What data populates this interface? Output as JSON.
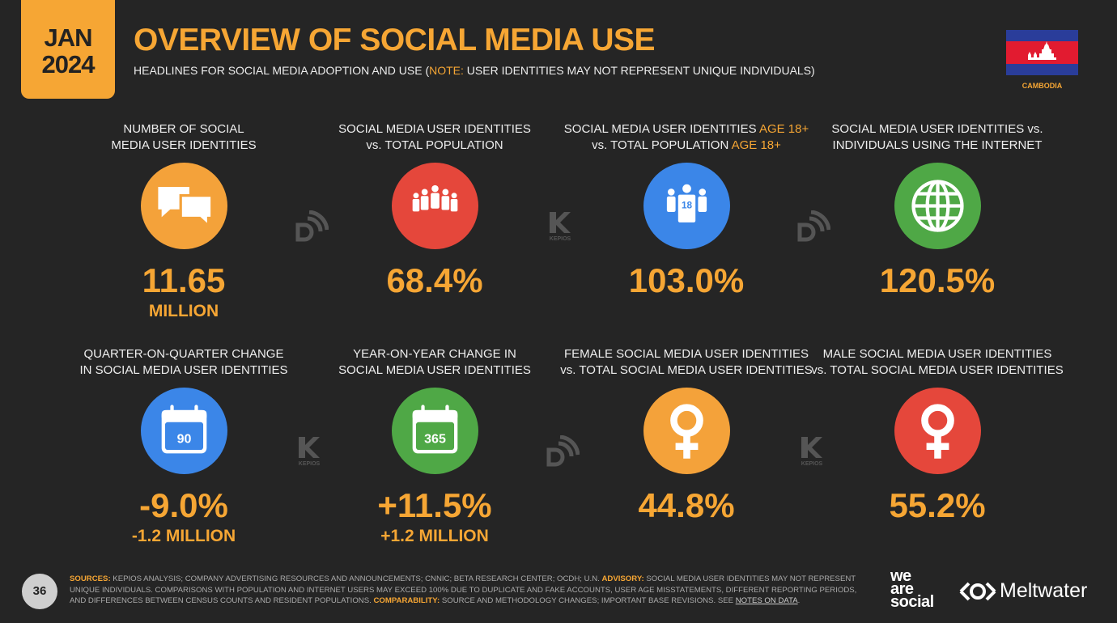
{
  "header": {
    "date_month": "JAN",
    "date_year": "2024",
    "title": "OVERVIEW OF SOCIAL MEDIA USE",
    "subtitle": [
      {
        "text": "HEADLINES FOR SOCIAL MEDIA ADOPTION AND USE (",
        "accent": false
      },
      {
        "text": "NOTE:",
        "accent": true
      },
      {
        "text": " USER IDENTITIES MAY NOT REPRESENT UNIQUE INDIVIDUALS)",
        "accent": false
      }
    ],
    "country": "CAMBODIA"
  },
  "tiles": [
    {
      "label": [
        [
          {
            "text": "NUMBER OF SOCIAL",
            "accent": false
          }
        ],
        [
          {
            "text": "MEDIA USER IDENTITIES",
            "accent": false
          }
        ]
      ],
      "color": "#f4a23a",
      "value": "11.65",
      "sub": "MILLION"
    },
    {
      "label": [
        [
          {
            "text": "SOCIAL MEDIA USER IDENTITIES",
            "accent": false
          }
        ],
        [
          {
            "text": "vs. TOTAL POPULATION",
            "accent": false
          }
        ]
      ],
      "color": "#e5473b",
      "value": "68.4%"
    },
    {
      "label": [
        [
          {
            "text": "SOCIAL MEDIA USER IDENTITIES ",
            "accent": false
          },
          {
            "text": "AGE 18+",
            "accent": true
          }
        ],
        [
          {
            "text": "vs. TOTAL POPULATION ",
            "accent": false
          },
          {
            "text": "AGE 18+",
            "accent": true
          }
        ]
      ],
      "color": "#3b86e8",
      "icon_text": "18",
      "value": "103.0%"
    },
    {
      "label": [
        [
          {
            "text": "SOCIAL MEDIA USER IDENTITIES vs.",
            "accent": false
          }
        ],
        [
          {
            "text": "INDIVIDUALS USING THE INTERNET",
            "accent": false
          }
        ]
      ],
      "color": "#4fa846",
      "value": "120.5%"
    },
    {
      "label": [
        [
          {
            "text": "QUARTER-ON-QUARTER CHANGE",
            "accent": false
          }
        ],
        [
          {
            "text": "IN SOCIAL MEDIA USER IDENTITIES",
            "accent": false
          }
        ]
      ],
      "color": "#3b86e8",
      "icon_text": "90",
      "value": "-9.0%",
      "sub": "-1.2 MILLION"
    },
    {
      "label": [
        [
          {
            "text": "YEAR-ON-YEAR CHANGE IN",
            "accent": false
          }
        ],
        [
          {
            "text": "SOCIAL MEDIA USER IDENTITIES",
            "accent": false
          }
        ]
      ],
      "color": "#4fa846",
      "icon_text": "365",
      "value": "+11.5%",
      "sub": "+1.2 MILLION"
    },
    {
      "label": [
        [
          {
            "text": "FEMALE SOCIAL MEDIA USER IDENTITIES",
            "accent": false
          }
        ],
        [
          {
            "text": "vs. TOTAL SOCIAL MEDIA USER IDENTITIES",
            "accent": false
          }
        ]
      ],
      "color": "#f4a23a",
      "value": "44.8%"
    },
    {
      "label": [
        [
          {
            "text": "MALE SOCIAL MEDIA USER IDENTITIES",
            "accent": false
          }
        ],
        [
          {
            "text": "vs. TOTAL SOCIAL MEDIA USER IDENTITIES",
            "accent": false
          }
        ]
      ],
      "color": "#e5473b",
      "value": "55.2%"
    }
  ],
  "watermark": "KEPIOS",
  "footer": {
    "page": "36",
    "notes": [
      {
        "text": "SOURCES:",
        "accent": true
      },
      {
        "text": " KEPIOS ANALYSIS; COMPANY ADVERTISING RESOURCES AND ANNOUNCEMENTS; CNNIC; BETA RESEARCH CENTER; OCDH; U.N. ",
        "accent": false
      },
      {
        "text": "ADVISORY:",
        "accent": true
      },
      {
        "text": " SOCIAL MEDIA USER IDENTITIES MAY NOT REPRESENT UNIQUE INDIVIDUALS. COMPARISONS WITH POPULATION AND INTERNET USERS MAY EXCEED 100% DUE TO DUPLICATE AND FAKE ACCOUNTS, USER AGE MISSTATEMENTS, DIFFERENT REPORTING PERIODS, AND DIFFERENCES BETWEEN CENSUS COUNTS AND RESIDENT POPULATIONS. ",
        "accent": false
      },
      {
        "text": "COMPARABILITY:",
        "accent": true
      },
      {
        "text": " SOURCE AND METHODOLOGY CHANGES; IMPORTANT BASE REVISIONS. SEE ",
        "accent": false
      },
      {
        "text": "NOTES ON DATA",
        "accent": false,
        "link": true
      },
      {
        "text": ".",
        "accent": false
      }
    ],
    "brand_lines": [
      "we",
      "are",
      "social"
    ],
    "partner": "Meltwater"
  }
}
